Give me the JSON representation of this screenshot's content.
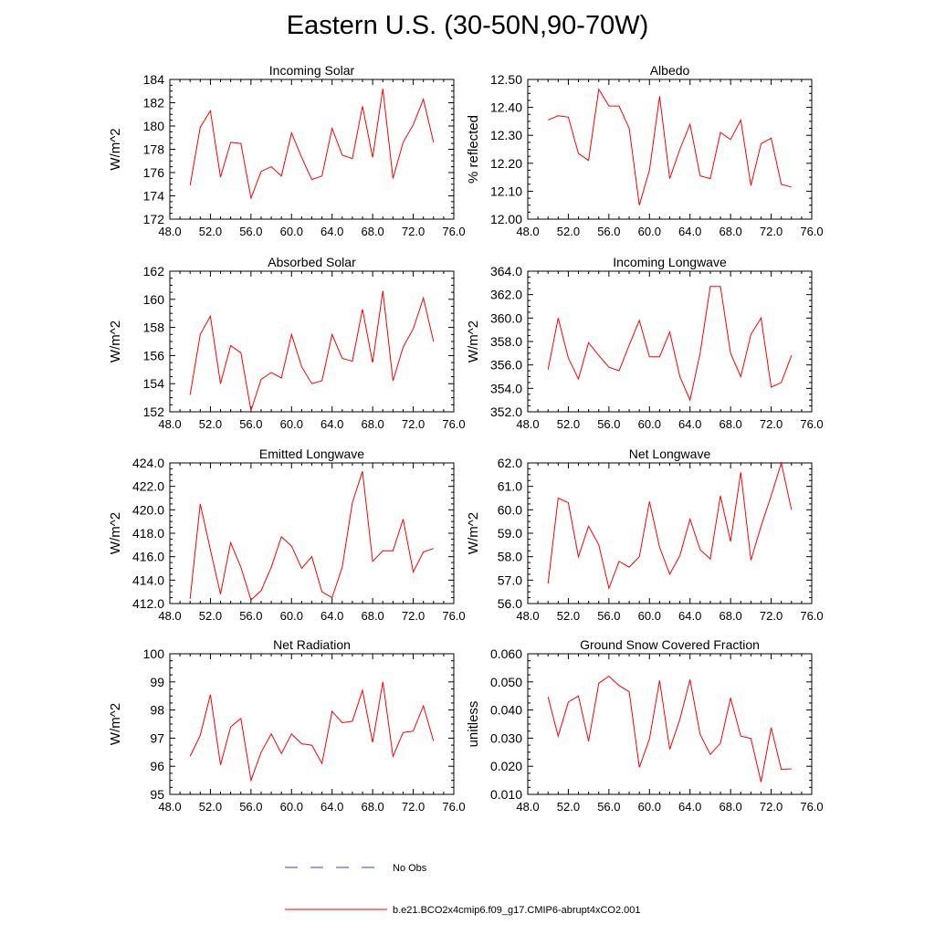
{
  "title": "Eastern U.S. (30-50N,90-70W)",
  "colors": {
    "model_line": "#ff0000",
    "obs_line": "#3b3bd6",
    "axis": "#000000"
  },
  "legend": {
    "obs_label": "No Obs",
    "model_label": "b.e21.BCO2x4cmip6.f09_g17.CMIP6-abrupt4xCO2.001"
  },
  "chart_data": [
    {
      "type": "line",
      "title": "Incoming Solar",
      "ylabel": "W/m^2",
      "xlim": [
        48,
        76
      ],
      "ylim": [
        172,
        184
      ],
      "xticks": [
        48,
        52,
        56,
        60,
        64,
        68,
        72,
        76
      ],
      "xtick_labels": [
        "48.0",
        "52.0",
        "56.0",
        "60.0",
        "64.0",
        "68.0",
        "72.0",
        "76.0"
      ],
      "yticks": [
        172,
        174,
        176,
        178,
        180,
        182,
        184
      ],
      "ytick_labels": [
        "172",
        "174",
        "176",
        "178",
        "180",
        "182",
        "184"
      ],
      "x": [
        50,
        51,
        52,
        53,
        54,
        55,
        56,
        57,
        58,
        59,
        60,
        61,
        62,
        63,
        64,
        65,
        66,
        67,
        68,
        69,
        70,
        71,
        72,
        73,
        74
      ],
      "values": [
        174.9,
        179.9,
        181.3,
        175.6,
        178.6,
        178.5,
        173.8,
        176.1,
        176.5,
        175.7,
        179.4,
        177.3,
        175.4,
        175.7,
        179.8,
        177.5,
        177.2,
        181.7,
        177.3,
        183.2,
        175.5,
        178.6,
        180.1,
        182.3,
        178.6
      ]
    },
    {
      "type": "line",
      "title": "Albedo",
      "ylabel": "% reflected",
      "xlim": [
        48,
        76
      ],
      "ylim": [
        12.0,
        12.5
      ],
      "xticks": [
        48,
        52,
        56,
        60,
        64,
        68,
        72,
        76
      ],
      "xtick_labels": [
        "48.0",
        "52.0",
        "56.0",
        "60.0",
        "64.0",
        "68.0",
        "72.0",
        "76.0"
      ],
      "yticks": [
        12.0,
        12.1,
        12.2,
        12.3,
        12.4,
        12.5
      ],
      "ytick_labels": [
        "12.00",
        "12.10",
        "12.20",
        "12.30",
        "12.40",
        "12.50"
      ],
      "x": [
        50,
        51,
        52,
        53,
        54,
        55,
        56,
        57,
        58,
        59,
        60,
        61,
        62,
        63,
        64,
        65,
        66,
        67,
        68,
        69,
        70,
        71,
        72,
        73,
        74
      ],
      "values": [
        12.355,
        12.37,
        12.365,
        12.235,
        12.21,
        12.465,
        12.405,
        12.405,
        12.325,
        12.05,
        12.175,
        12.44,
        12.145,
        12.25,
        12.34,
        12.155,
        12.145,
        12.31,
        12.285,
        12.355,
        12.12,
        12.27,
        12.29,
        12.125,
        12.115
      ]
    },
    {
      "type": "line",
      "title": "Absorbed Solar",
      "ylabel": "W/m^2",
      "xlim": [
        48,
        76
      ],
      "ylim": [
        152,
        162
      ],
      "xticks": [
        48,
        52,
        56,
        60,
        64,
        68,
        72,
        76
      ],
      "xtick_labels": [
        "48.0",
        "52.0",
        "56.0",
        "60.0",
        "64.0",
        "68.0",
        "72.0",
        "76.0"
      ],
      "yticks": [
        152,
        154,
        156,
        158,
        160,
        162
      ],
      "ytick_labels": [
        "152",
        "154",
        "156",
        "158",
        "160",
        "162"
      ],
      "x": [
        50,
        51,
        52,
        53,
        54,
        55,
        56,
        57,
        58,
        59,
        60,
        61,
        62,
        63,
        64,
        65,
        66,
        67,
        68,
        69,
        70,
        71,
        72,
        73,
        74
      ],
      "values": [
        153.2,
        157.5,
        158.8,
        154.0,
        156.7,
        156.2,
        152.1,
        154.3,
        154.8,
        154.4,
        157.5,
        155.2,
        154.0,
        154.2,
        157.5,
        155.8,
        155.6,
        159.3,
        155.5,
        160.6,
        154.2,
        156.6,
        157.9,
        160.1,
        157.0
      ]
    },
    {
      "type": "line",
      "title": "Incoming Longwave",
      "ylabel": "W/m^2",
      "xlim": [
        48,
        76
      ],
      "ylim": [
        352,
        364
      ],
      "xticks": [
        48,
        52,
        56,
        60,
        64,
        68,
        72,
        76
      ],
      "xtick_labels": [
        "48.0",
        "52.0",
        "56.0",
        "60.0",
        "64.0",
        "68.0",
        "72.0",
        "76.0"
      ],
      "yticks": [
        352,
        354,
        356,
        358,
        360,
        362,
        364
      ],
      "ytick_labels": [
        "352.0",
        "354.0",
        "356.0",
        "358.0",
        "360.0",
        "362.0",
        "364.0"
      ],
      "x": [
        50,
        51,
        52,
        53,
        54,
        55,
        56,
        57,
        58,
        59,
        60,
        61,
        62,
        63,
        64,
        65,
        66,
        67,
        68,
        69,
        70,
        71,
        72,
        73,
        74
      ],
      "values": [
        355.6,
        360.0,
        356.6,
        354.8,
        357.9,
        356.8,
        355.8,
        355.5,
        357.7,
        359.8,
        356.7,
        356.7,
        358.8,
        355.0,
        353.0,
        357.0,
        362.7,
        362.7,
        357.0,
        355.0,
        358.6,
        360.0,
        354.1,
        354.5,
        356.8
      ]
    },
    {
      "type": "line",
      "title": "Emitted Longwave",
      "ylabel": "W/m^2",
      "xlim": [
        48,
        76
      ],
      "ylim": [
        412,
        424
      ],
      "xticks": [
        48,
        52,
        56,
        60,
        64,
        68,
        72,
        76
      ],
      "xtick_labels": [
        "48.0",
        "52.0",
        "56.0",
        "60.0",
        "64.0",
        "68.0",
        "72.0",
        "76.0"
      ],
      "yticks": [
        412,
        414,
        416,
        418,
        420,
        422,
        424
      ],
      "ytick_labels": [
        "412.0",
        "414.0",
        "416.0",
        "418.0",
        "420.0",
        "422.0",
        "424.0"
      ],
      "x": [
        50,
        51,
        52,
        53,
        54,
        55,
        56,
        57,
        58,
        59,
        60,
        61,
        62,
        63,
        64,
        65,
        66,
        67,
        68,
        69,
        70,
        71,
        72,
        73,
        74
      ],
      "values": [
        412.4,
        420.5,
        416.6,
        412.8,
        417.2,
        415.1,
        412.3,
        413.1,
        415.1,
        417.7,
        416.9,
        415.0,
        416.0,
        413.0,
        412.5,
        415.1,
        420.6,
        423.3,
        415.6,
        416.5,
        416.5,
        419.2,
        414.7,
        416.4,
        416.7
      ]
    },
    {
      "type": "line",
      "title": "Net Longwave",
      "ylabel": "W/m^2",
      "xlim": [
        48,
        76
      ],
      "ylim": [
        56,
        62
      ],
      "xticks": [
        48,
        52,
        56,
        60,
        64,
        68,
        72,
        76
      ],
      "xtick_labels": [
        "48.0",
        "52.0",
        "56.0",
        "60.0",
        "64.0",
        "68.0",
        "72.0",
        "76.0"
      ],
      "yticks": [
        56,
        57,
        58,
        59,
        60,
        61,
        62
      ],
      "ytick_labels": [
        "56.0",
        "57.0",
        "58.0",
        "59.0",
        "60.0",
        "61.0",
        "62.0"
      ],
      "x": [
        50,
        51,
        52,
        53,
        54,
        55,
        56,
        57,
        58,
        59,
        60,
        61,
        62,
        63,
        64,
        65,
        66,
        67,
        68,
        69,
        70,
        71,
        72,
        73,
        74
      ],
      "values": [
        56.85,
        60.5,
        60.3,
        58.0,
        59.3,
        58.5,
        56.65,
        57.8,
        57.55,
        58.0,
        60.35,
        58.4,
        57.25,
        58.05,
        59.6,
        58.3,
        57.9,
        60.6,
        58.65,
        61.6,
        57.85,
        59.3,
        60.6,
        62.0,
        60.0
      ]
    },
    {
      "type": "line",
      "title": "Net Radiation",
      "ylabel": "W/m^2",
      "xlim": [
        48,
        76
      ],
      "ylim": [
        95,
        100
      ],
      "xticks": [
        48,
        52,
        56,
        60,
        64,
        68,
        72,
        76
      ],
      "xtick_labels": [
        "48.0",
        "52.0",
        "56.0",
        "60.0",
        "64.0",
        "68.0",
        "72.0",
        "76.0"
      ],
      "yticks": [
        95,
        96,
        97,
        98,
        99,
        100
      ],
      "ytick_labels": [
        "95",
        "96",
        "97",
        "98",
        "99",
        "100"
      ],
      "x": [
        50,
        51,
        52,
        53,
        54,
        55,
        56,
        57,
        58,
        59,
        60,
        61,
        62,
        63,
        64,
        65,
        66,
        67,
        68,
        69,
        70,
        71,
        72,
        73,
        74
      ],
      "values": [
        96.35,
        97.1,
        98.55,
        96.05,
        97.4,
        97.7,
        95.5,
        96.5,
        97.15,
        96.45,
        97.15,
        96.8,
        96.75,
        96.1,
        97.95,
        97.55,
        97.6,
        98.7,
        96.85,
        99.0,
        96.35,
        97.2,
        97.25,
        98.15,
        96.9
      ]
    },
    {
      "type": "line",
      "title": "Ground Snow Covered Fraction",
      "ylabel": "unitless",
      "xlim": [
        48,
        76
      ],
      "ylim": [
        0.01,
        0.06
      ],
      "xticks": [
        48,
        52,
        56,
        60,
        64,
        68,
        72,
        76
      ],
      "xtick_labels": [
        "48.0",
        "52.0",
        "56.0",
        "60.0",
        "64.0",
        "68.0",
        "72.0",
        "76.0"
      ],
      "yticks": [
        0.01,
        0.02,
        0.03,
        0.04,
        0.05,
        0.06
      ],
      "ytick_labels": [
        "0.010",
        "0.020",
        "0.030",
        "0.040",
        "0.050",
        "0.060"
      ],
      "x": [
        50,
        51,
        52,
        53,
        54,
        55,
        56,
        57,
        58,
        59,
        60,
        61,
        62,
        63,
        64,
        65,
        66,
        67,
        68,
        69,
        70,
        71,
        72,
        73,
        74
      ],
      "values": [
        0.0447,
        0.0307,
        0.0428,
        0.045,
        0.0289,
        0.0495,
        0.052,
        0.0487,
        0.0465,
        0.0196,
        0.0297,
        0.0505,
        0.026,
        0.0367,
        0.0508,
        0.0313,
        0.0242,
        0.0282,
        0.0443,
        0.0307,
        0.0299,
        0.0144,
        0.0337,
        0.0189,
        0.0191
      ]
    }
  ]
}
